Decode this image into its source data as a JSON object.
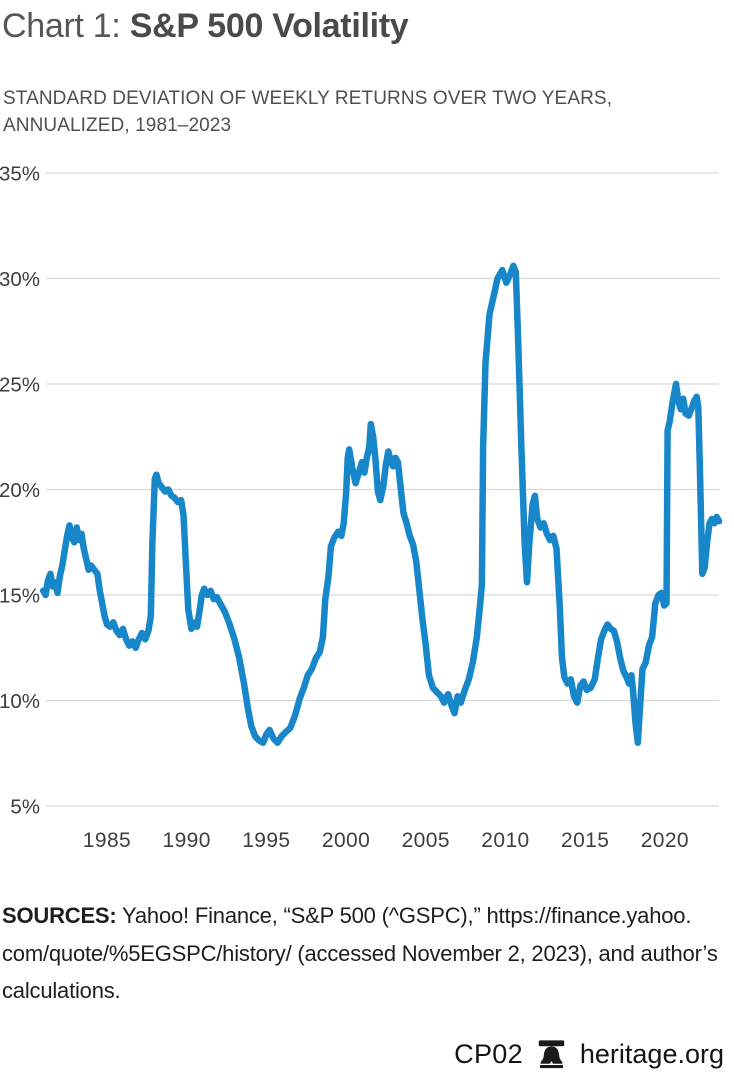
{
  "header": {
    "title_prefix": "Chart 1: ",
    "title_main": "S&P 500 Volatility",
    "subtitle_line1": "STANDARD DEVIATION OF WEEKLY RETURNS OVER TWO YEARS,",
    "subtitle_line2": "ANNUALIZED, 1981–2023"
  },
  "sources": {
    "label": "SOURCES:",
    "line1_rest": " Yahoo! Finance, “S&P 500 (^GSPC),” https://finance.yahoo.",
    "line2": "com/quote/%5EGSPC/history/ (accessed November 2, 2023), and author’s",
    "line3": "calculations."
  },
  "footer": {
    "code": "CP02",
    "site": "heritage.org",
    "logo_icon": "liberty-bell-icon"
  },
  "colors": {
    "line": "#1787c9",
    "gridline": "#d9d9d9",
    "tick_label": "#3e3e3e"
  },
  "chart_data": {
    "type": "line",
    "title": "Chart 1: S&P 500 Volatility",
    "subtitle": "Standard deviation of weekly returns over two years, annualized, 1981–2023",
    "xlabel": "",
    "ylabel": "",
    "xlim": [
      1981,
      2023.5
    ],
    "ylim": [
      5,
      35
    ],
    "grid": true,
    "legend_position": "none",
    "y_ticks": [
      {
        "value": 35,
        "label": "35%"
      },
      {
        "value": 30,
        "label": "30%"
      },
      {
        "value": 25,
        "label": "25%"
      },
      {
        "value": 20,
        "label": "20%"
      },
      {
        "value": 15,
        "label": "15%"
      },
      {
        "value": 10,
        "label": "10%"
      },
      {
        "value": 5,
        "label": "5%"
      }
    ],
    "x_ticks": [
      {
        "value": 1985,
        "label": "1985"
      },
      {
        "value": 1990,
        "label": "1990"
      },
      {
        "value": 1995,
        "label": "1995"
      },
      {
        "value": 2000,
        "label": "2000"
      },
      {
        "value": 2005,
        "label": "2005"
      },
      {
        "value": 2010,
        "label": "2010"
      },
      {
        "value": 2015,
        "label": "2015"
      },
      {
        "value": 2020,
        "label": "2020"
      }
    ],
    "series": [
      {
        "name": "S&P 500 annualized volatility of weekly returns (two-year window)",
        "color": "#1787c9",
        "points": [
          [
            1981.0,
            15.2
          ],
          [
            1981.15,
            15.0
          ],
          [
            1981.3,
            15.7
          ],
          [
            1981.45,
            16.0
          ],
          [
            1981.6,
            15.4
          ],
          [
            1981.75,
            15.6
          ],
          [
            1981.9,
            15.1
          ],
          [
            1982.05,
            15.9
          ],
          [
            1982.2,
            16.4
          ],
          [
            1982.35,
            17.1
          ],
          [
            1982.5,
            17.8
          ],
          [
            1982.65,
            18.3
          ],
          [
            1982.8,
            17.7
          ],
          [
            1982.95,
            17.5
          ],
          [
            1983.1,
            18.2
          ],
          [
            1983.25,
            17.6
          ],
          [
            1983.4,
            17.9
          ],
          [
            1983.55,
            17.2
          ],
          [
            1983.7,
            16.7
          ],
          [
            1983.85,
            16.2
          ],
          [
            1984.0,
            16.4
          ],
          [
            1984.2,
            16.2
          ],
          [
            1984.4,
            16.0
          ],
          [
            1984.55,
            15.2
          ],
          [
            1984.7,
            14.6
          ],
          [
            1984.85,
            14.0
          ],
          [
            1985.0,
            13.6
          ],
          [
            1985.2,
            13.5
          ],
          [
            1985.4,
            13.7
          ],
          [
            1985.6,
            13.3
          ],
          [
            1985.8,
            13.1
          ],
          [
            1986.0,
            13.4
          ],
          [
            1986.2,
            12.9
          ],
          [
            1986.4,
            12.6
          ],
          [
            1986.6,
            12.8
          ],
          [
            1986.8,
            12.5
          ],
          [
            1987.0,
            12.9
          ],
          [
            1987.2,
            13.2
          ],
          [
            1987.4,
            12.9
          ],
          [
            1987.6,
            13.3
          ],
          [
            1987.75,
            14.0
          ],
          [
            1987.85,
            17.5
          ],
          [
            1988.0,
            20.5
          ],
          [
            1988.1,
            20.7
          ],
          [
            1988.25,
            20.3
          ],
          [
            1988.45,
            20.1
          ],
          [
            1988.65,
            19.9
          ],
          [
            1988.85,
            20.0
          ],
          [
            1989.05,
            19.7
          ],
          [
            1989.25,
            19.6
          ],
          [
            1989.45,
            19.4
          ],
          [
            1989.65,
            19.5
          ],
          [
            1989.8,
            18.8
          ],
          [
            1989.95,
            16.5
          ],
          [
            1990.1,
            14.3
          ],
          [
            1990.3,
            13.4
          ],
          [
            1990.5,
            13.7
          ],
          [
            1990.65,
            13.5
          ],
          [
            1990.8,
            14.2
          ],
          [
            1990.95,
            15.0
          ],
          [
            1991.1,
            15.3
          ],
          [
            1991.3,
            15.0
          ],
          [
            1991.5,
            15.2
          ],
          [
            1991.7,
            14.8
          ],
          [
            1991.9,
            14.9
          ],
          [
            1992.1,
            14.6
          ],
          [
            1992.4,
            14.2
          ],
          [
            1992.7,
            13.6
          ],
          [
            1993.0,
            12.9
          ],
          [
            1993.3,
            12.0
          ],
          [
            1993.6,
            10.8
          ],
          [
            1993.85,
            9.6
          ],
          [
            1994.05,
            8.8
          ],
          [
            1994.3,
            8.3
          ],
          [
            1994.55,
            8.1
          ],
          [
            1994.8,
            8.0
          ],
          [
            1995.0,
            8.4
          ],
          [
            1995.2,
            8.6
          ],
          [
            1995.45,
            8.2
          ],
          [
            1995.7,
            8.0
          ],
          [
            1995.95,
            8.3
          ],
          [
            1996.2,
            8.5
          ],
          [
            1996.5,
            8.7
          ],
          [
            1996.8,
            9.3
          ],
          [
            1997.1,
            10.1
          ],
          [
            1997.35,
            10.6
          ],
          [
            1997.6,
            11.2
          ],
          [
            1997.85,
            11.5
          ],
          [
            1998.1,
            12.0
          ],
          [
            1998.35,
            12.3
          ],
          [
            1998.55,
            13.0
          ],
          [
            1998.7,
            14.8
          ],
          [
            1998.9,
            15.9
          ],
          [
            1999.05,
            17.3
          ],
          [
            1999.25,
            17.7
          ],
          [
            1999.5,
            18.0
          ],
          [
            1999.7,
            17.8
          ],
          [
            1999.85,
            18.4
          ],
          [
            2000.0,
            19.8
          ],
          [
            2000.1,
            21.5
          ],
          [
            2000.2,
            21.9
          ],
          [
            2000.4,
            21.0
          ],
          [
            2000.6,
            20.3
          ],
          [
            2000.8,
            20.8
          ],
          [
            2001.0,
            21.3
          ],
          [
            2001.15,
            20.8
          ],
          [
            2001.3,
            21.5
          ],
          [
            2001.45,
            22.0
          ],
          [
            2001.55,
            23.1
          ],
          [
            2001.7,
            22.5
          ],
          [
            2001.85,
            21.4
          ],
          [
            2002.0,
            19.9
          ],
          [
            2002.15,
            19.5
          ],
          [
            2002.35,
            20.2
          ],
          [
            2002.5,
            21.2
          ],
          [
            2002.65,
            21.8
          ],
          [
            2002.8,
            21.4
          ],
          [
            2002.95,
            21.1
          ],
          [
            2003.1,
            21.5
          ],
          [
            2003.25,
            21.3
          ],
          [
            2003.45,
            19.9
          ],
          [
            2003.6,
            18.9
          ],
          [
            2003.8,
            18.4
          ],
          [
            2004.0,
            17.8
          ],
          [
            2004.2,
            17.4
          ],
          [
            2004.4,
            16.6
          ],
          [
            2004.6,
            15.2
          ],
          [
            2004.8,
            13.8
          ],
          [
            2005.0,
            12.6
          ],
          [
            2005.2,
            11.2
          ],
          [
            2005.45,
            10.6
          ],
          [
            2005.7,
            10.4
          ],
          [
            2005.95,
            10.2
          ],
          [
            2006.15,
            9.9
          ],
          [
            2006.4,
            10.3
          ],
          [
            2006.6,
            9.8
          ],
          [
            2006.8,
            9.4
          ],
          [
            2007.0,
            10.2
          ],
          [
            2007.2,
            9.9
          ],
          [
            2007.45,
            10.5
          ],
          [
            2007.7,
            11.0
          ],
          [
            2007.95,
            11.8
          ],
          [
            2008.2,
            13.0
          ],
          [
            2008.4,
            14.5
          ],
          [
            2008.52,
            15.5
          ],
          [
            2008.6,
            22.0
          ],
          [
            2008.75,
            26.0
          ],
          [
            2009.0,
            28.3
          ],
          [
            2009.3,
            29.3
          ],
          [
            2009.5,
            30.0
          ],
          [
            2009.8,
            30.4
          ],
          [
            2010.05,
            29.8
          ],
          [
            2010.3,
            30.2
          ],
          [
            2010.5,
            30.6
          ],
          [
            2010.65,
            30.3
          ],
          [
            2010.8,
            27.0
          ],
          [
            2011.0,
            22.0
          ],
          [
            2011.2,
            17.5
          ],
          [
            2011.35,
            15.6
          ],
          [
            2011.5,
            17.5
          ],
          [
            2011.7,
            19.3
          ],
          [
            2011.85,
            19.7
          ],
          [
            2012.0,
            18.6
          ],
          [
            2012.2,
            18.2
          ],
          [
            2012.4,
            18.4
          ],
          [
            2012.6,
            17.9
          ],
          [
            2012.8,
            17.6
          ],
          [
            2013.0,
            17.8
          ],
          [
            2013.2,
            17.2
          ],
          [
            2013.4,
            14.5
          ],
          [
            2013.55,
            12.0
          ],
          [
            2013.7,
            11.1
          ],
          [
            2013.9,
            10.8
          ],
          [
            2014.1,
            11.0
          ],
          [
            2014.3,
            10.2
          ],
          [
            2014.5,
            9.9
          ],
          [
            2014.7,
            10.7
          ],
          [
            2014.9,
            10.9
          ],
          [
            2015.1,
            10.5
          ],
          [
            2015.35,
            10.6
          ],
          [
            2015.6,
            11.0
          ],
          [
            2015.8,
            12.0
          ],
          [
            2016.0,
            12.9
          ],
          [
            2016.2,
            13.3
          ],
          [
            2016.4,
            13.6
          ],
          [
            2016.6,
            13.4
          ],
          [
            2016.8,
            13.3
          ],
          [
            2017.0,
            12.8
          ],
          [
            2017.2,
            12.0
          ],
          [
            2017.4,
            11.4
          ],
          [
            2017.6,
            11.1
          ],
          [
            2017.75,
            10.8
          ],
          [
            2017.9,
            11.2
          ],
          [
            2018.0,
            10.5
          ],
          [
            2018.15,
            9.0
          ],
          [
            2018.3,
            8.0
          ],
          [
            2018.45,
            9.8
          ],
          [
            2018.6,
            11.5
          ],
          [
            2018.8,
            11.8
          ],
          [
            2019.0,
            12.6
          ],
          [
            2019.2,
            13.0
          ],
          [
            2019.4,
            14.6
          ],
          [
            2019.6,
            15.0
          ],
          [
            2019.8,
            15.1
          ],
          [
            2019.95,
            14.5
          ],
          [
            2020.1,
            14.6
          ],
          [
            2020.17,
            22.8
          ],
          [
            2020.3,
            23.2
          ],
          [
            2020.5,
            24.2
          ],
          [
            2020.7,
            25.0
          ],
          [
            2020.85,
            24.2
          ],
          [
            2021.0,
            23.8
          ],
          [
            2021.15,
            24.3
          ],
          [
            2021.3,
            23.6
          ],
          [
            2021.5,
            23.5
          ],
          [
            2021.7,
            23.9
          ],
          [
            2021.85,
            24.2
          ],
          [
            2022.0,
            24.4
          ],
          [
            2022.1,
            23.9
          ],
          [
            2022.2,
            21.0
          ],
          [
            2022.35,
            16.0
          ],
          [
            2022.5,
            16.3
          ],
          [
            2022.65,
            17.5
          ],
          [
            2022.8,
            18.4
          ],
          [
            2022.95,
            18.6
          ],
          [
            2023.1,
            18.4
          ],
          [
            2023.25,
            18.7
          ],
          [
            2023.4,
            18.5
          ]
        ]
      }
    ]
  }
}
